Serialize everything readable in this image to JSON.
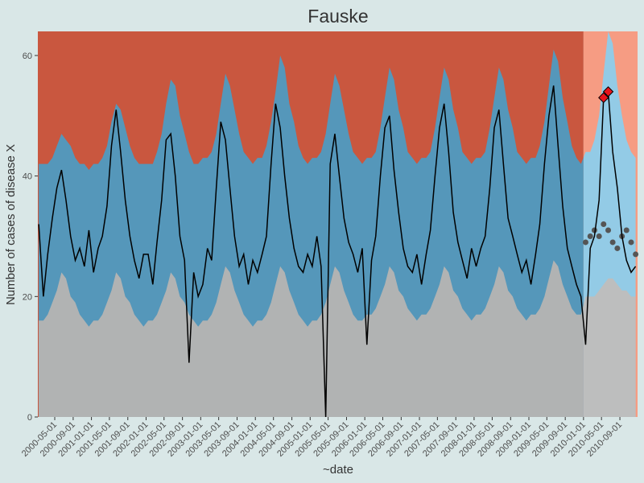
{
  "chart_data": {
    "type": "band-line",
    "title": "Fauske",
    "xlabel": "~date",
    "ylabel": "Number of cases of disease X",
    "xlim": [
      "2000-01-09",
      "2010-12-28"
    ],
    "ylim": [
      0,
      64
    ],
    "yticks": [
      0,
      20,
      40,
      60
    ],
    "xticks": [
      "2000-05-01",
      "2000-09-01",
      "2001-01-01",
      "2001-05-01",
      "2001-09-01",
      "2002-01-01",
      "2002-05-01",
      "2002-09-01",
      "2003-01-01",
      "2003-05-01",
      "2003-09-01",
      "2004-01-01",
      "2004-05-01",
      "2004-09-01",
      "2005-01-01",
      "2005-05-01",
      "2005-09-01",
      "2006-01-01",
      "2006-05-01",
      "2006-09-01",
      "2007-01-01",
      "2007-05-01",
      "2007-09-01",
      "2008-01-01",
      "2008-05-01",
      "2008-09-01",
      "2009-01-01",
      "2009-05-01",
      "2009-09-01",
      "2010-01-01",
      "2010-05-01",
      "2010-09-01"
    ],
    "forecast_start": "2010-01-01",
    "colors": {
      "above": "#c9573f",
      "band": "#5597ba",
      "below": "#b1b3b3",
      "above_forecast": "#f69c83",
      "band_forecast": "#93cbe6",
      "below_forecast": "#bdbebe",
      "line": "#000000",
      "forecast": "#555555",
      "alarm": "#e8141c",
      "background": "#d9e7e7"
    },
    "x": [
      "2000-01-15",
      "2000-02-15",
      "2000-03-15",
      "2000-04-15",
      "2000-05-15",
      "2000-06-15",
      "2000-07-15",
      "2000-08-15",
      "2000-09-15",
      "2000-10-15",
      "2000-11-15",
      "2000-12-15",
      "2001-01-15",
      "2001-02-15",
      "2001-03-15",
      "2001-04-15",
      "2001-05-15",
      "2001-06-15",
      "2001-07-15",
      "2001-08-15",
      "2001-09-15",
      "2001-10-15",
      "2001-11-15",
      "2001-12-15",
      "2002-01-15",
      "2002-02-15",
      "2002-03-15",
      "2002-04-15",
      "2002-05-15",
      "2002-06-15",
      "2002-07-15",
      "2002-08-15",
      "2002-09-15",
      "2002-10-15",
      "2002-11-15",
      "2002-12-15",
      "2003-01-15",
      "2003-02-15",
      "2003-03-15",
      "2003-04-15",
      "2003-05-15",
      "2003-06-15",
      "2003-07-15",
      "2003-08-15",
      "2003-09-15",
      "2003-10-15",
      "2003-11-15",
      "2003-12-15",
      "2004-01-15",
      "2004-02-15",
      "2004-03-15",
      "2004-04-15",
      "2004-05-15",
      "2004-06-15",
      "2004-07-15",
      "2004-08-15",
      "2004-09-15",
      "2004-10-15",
      "2004-11-15",
      "2004-12-15",
      "2005-01-15",
      "2005-02-15",
      "2005-03-15",
      "2005-04-15",
      "2005-05-15",
      "2005-06-15",
      "2005-07-15",
      "2005-08-15",
      "2005-09-15",
      "2005-10-15",
      "2005-11-15",
      "2005-12-15",
      "2006-01-15",
      "2006-02-15",
      "2006-03-15",
      "2006-04-15",
      "2006-05-15",
      "2006-06-15",
      "2006-07-15",
      "2006-08-15",
      "2006-09-15",
      "2006-10-15",
      "2006-11-15",
      "2006-12-15",
      "2007-01-15",
      "2007-02-15",
      "2007-03-15",
      "2007-04-15",
      "2007-05-15",
      "2007-06-15",
      "2007-07-15",
      "2007-08-15",
      "2007-09-15",
      "2007-10-15",
      "2007-11-15",
      "2007-12-15",
      "2008-01-15",
      "2008-02-15",
      "2008-03-15",
      "2008-04-15",
      "2008-05-15",
      "2008-06-15",
      "2008-07-15",
      "2008-08-15",
      "2008-09-15",
      "2008-10-15",
      "2008-11-15",
      "2008-12-15",
      "2009-01-15",
      "2009-02-15",
      "2009-03-15",
      "2009-04-15",
      "2009-05-15",
      "2009-06-15",
      "2009-07-15",
      "2009-08-15",
      "2009-09-15",
      "2009-10-15",
      "2009-11-15",
      "2009-12-15",
      "2010-01-15",
      "2010-02-15",
      "2010-03-15",
      "2010-04-15",
      "2010-05-15",
      "2010-06-15",
      "2010-07-15",
      "2010-08-15",
      "2010-09-15",
      "2010-10-15",
      "2010-11-15",
      "2010-12-15"
    ],
    "values": [
      32,
      20,
      27,
      33,
      38,
      41,
      36,
      30,
      26,
      28,
      25,
      31,
      24,
      28,
      30,
      35,
      45,
      51,
      44,
      36,
      30,
      26,
      23,
      27,
      27,
      22,
      29,
      36,
      46,
      47,
      40,
      30,
      26,
      9,
      24,
      20,
      22,
      28,
      26,
      38,
      49,
      46,
      38,
      30,
      25,
      27,
      22,
      26,
      24,
      27,
      30,
      42,
      52,
      48,
      40,
      33,
      28,
      25,
      24,
      27,
      25,
      30,
      25,
      0,
      42,
      47,
      40,
      33,
      29,
      27,
      24,
      28,
      12,
      26,
      30,
      40,
      48,
      50,
      41,
      34,
      28,
      25,
      24,
      27,
      22,
      27,
      31,
      40,
      48,
      52,
      44,
      34,
      29,
      26,
      23,
      28,
      25,
      28,
      30,
      38,
      48,
      51,
      42,
      33,
      30,
      27,
      24,
      26,
      22,
      27,
      32,
      42,
      50,
      55,
      45,
      35,
      28,
      25,
      22,
      20,
      12,
      28,
      30,
      36,
      53,
      54,
      44,
      38,
      30,
      26,
      24,
      25
    ],
    "upper": [
      42,
      42,
      42,
      43,
      45,
      47,
      46,
      45,
      43,
      42,
      42,
      41,
      42,
      42,
      43,
      45,
      49,
      52,
      51,
      48,
      45,
      43,
      42,
      42,
      42,
      42,
      44,
      47,
      52,
      56,
      55,
      50,
      47,
      44,
      42,
      42,
      43,
      43,
      44,
      47,
      52,
      57,
      55,
      51,
      47,
      44,
      43,
      42,
      43,
      43,
      45,
      49,
      54,
      60,
      58,
      52,
      49,
      45,
      43,
      42,
      43,
      43,
      44,
      47,
      52,
      57,
      55,
      51,
      47,
      44,
      43,
      42,
      43,
      43,
      44,
      48,
      53,
      58,
      56,
      51,
      48,
      44,
      43,
      42,
      43,
      43,
      44,
      48,
      53,
      58,
      56,
      51,
      48,
      44,
      43,
      42,
      43,
      43,
      44,
      48,
      53,
      58,
      56,
      51,
      48,
      44,
      43,
      42,
      43,
      43,
      45,
      49,
      55,
      61,
      59,
      53,
      49,
      45,
      43,
      42,
      44,
      44,
      46,
      50,
      57,
      64,
      62,
      55,
      50,
      46,
      44,
      43
    ],
    "lower": [
      16,
      16,
      17,
      19,
      21,
      24,
      23,
      20,
      19,
      17,
      16,
      15,
      16,
      16,
      17,
      19,
      21,
      24,
      23,
      20,
      19,
      17,
      16,
      15,
      16,
      16,
      17,
      19,
      21,
      24,
      23,
      20,
      19,
      17,
      16,
      15,
      16,
      16,
      17,
      19,
      22,
      25,
      24,
      21,
      19,
      17,
      16,
      15,
      16,
      16,
      17,
      19,
      22,
      25,
      24,
      21,
      19,
      17,
      16,
      15,
      16,
      16,
      17,
      19,
      22,
      25,
      24,
      21,
      19,
      17,
      16,
      16,
      17,
      17,
      18,
      20,
      22,
      25,
      24,
      21,
      20,
      18,
      17,
      16,
      17,
      17,
      18,
      20,
      22,
      25,
      24,
      21,
      20,
      18,
      17,
      16,
      17,
      17,
      18,
      20,
      22,
      25,
      24,
      21,
      20,
      18,
      17,
      16,
      17,
      17,
      18,
      20,
      23,
      26,
      25,
      22,
      20,
      18,
      17,
      17,
      20,
      20,
      20,
      21,
      22,
      23,
      23,
      22,
      21,
      21,
      20,
      20
    ],
    "forecast": {
      "x": [
        "2010-01-15",
        "2010-02-15",
        "2010-03-15",
        "2010-04-15",
        "2010-05-15",
        "2010-06-15",
        "2010-07-15",
        "2010-08-15",
        "2010-09-15",
        "2010-10-15",
        "2010-11-15",
        "2010-12-15"
      ],
      "values": [
        29,
        30,
        31,
        30,
        32,
        31,
        29,
        28,
        30,
        31,
        29,
        27
      ]
    },
    "alarms": {
      "x": [
        "2010-05-15",
        "2010-06-15"
      ],
      "values": [
        53,
        54
      ]
    }
  }
}
